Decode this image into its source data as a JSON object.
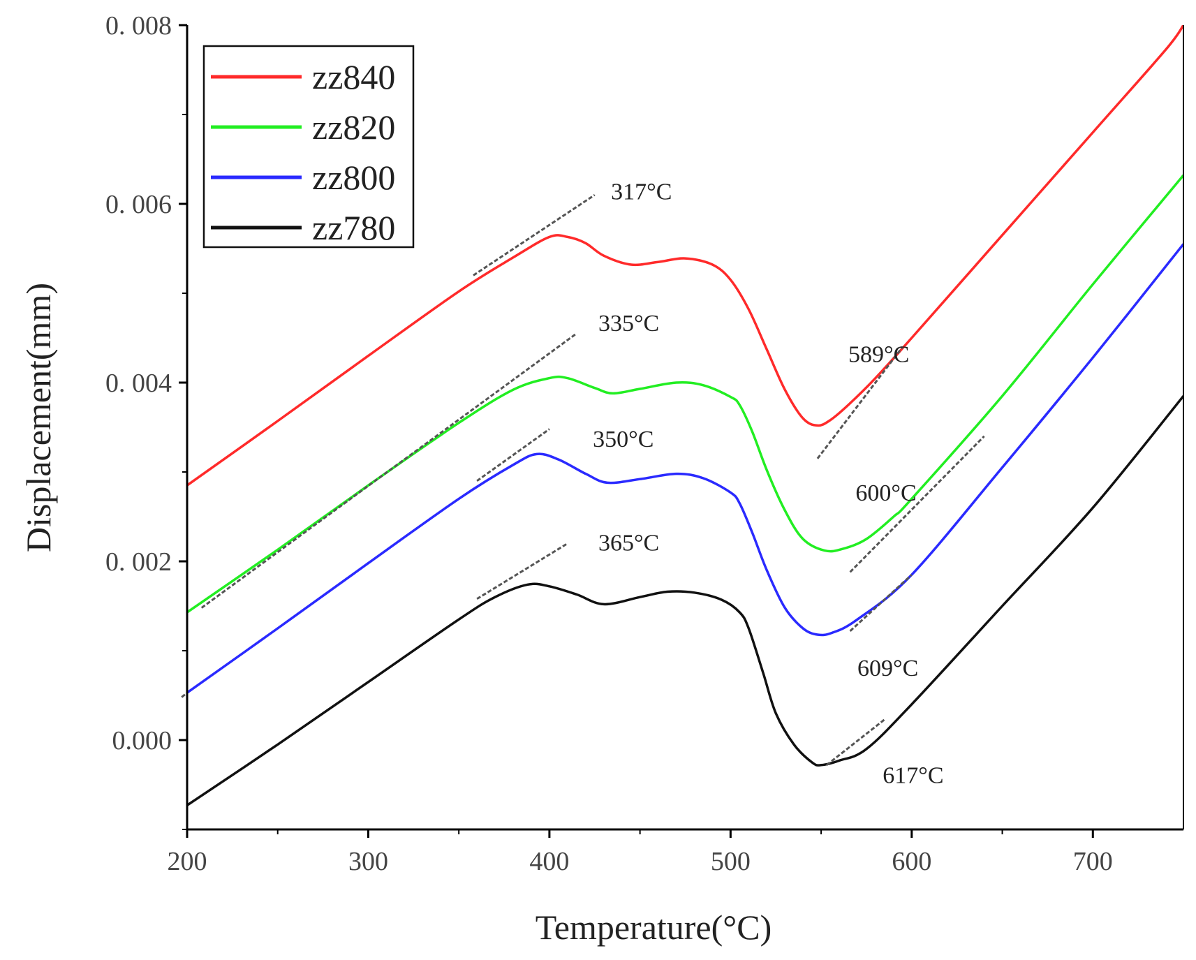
{
  "chart_data": {
    "type": "line",
    "title": "",
    "xlabel": "Temperature(°C)",
    "ylabel": "Displacement(mm)",
    "xlim": [
      200,
      750
    ],
    "ylim": [
      -0.001,
      0.008
    ],
    "xticks": [
      200,
      300,
      400,
      500,
      600,
      700
    ],
    "xtick_labels": [
      "200",
      "300",
      "400",
      "500",
      "600",
      "700"
    ],
    "yticks": [
      0.0,
      0.002,
      0.004,
      0.006,
      0.008
    ],
    "ytick_labels": [
      "0.000",
      "0. 002",
      "0. 004",
      "0. 006",
      "0. 008"
    ],
    "grid": false,
    "legend_position": "top-left",
    "series": [
      {
        "name": "zz840",
        "color": "#ff2a2a",
        "points": [
          [
            200,
            0.00285
          ],
          [
            250,
            0.00357
          ],
          [
            300,
            0.0043
          ],
          [
            350,
            0.00502
          ],
          [
            380,
            0.0054
          ],
          [
            400,
            0.00563
          ],
          [
            410,
            0.00563
          ],
          [
            420,
            0.00556
          ],
          [
            430,
            0.00542
          ],
          [
            445,
            0.00532
          ],
          [
            460,
            0.00535
          ],
          [
            475,
            0.00539
          ],
          [
            490,
            0.00532
          ],
          [
            500,
            0.00515
          ],
          [
            510,
            0.00482
          ],
          [
            520,
            0.00437
          ],
          [
            530,
            0.00392
          ],
          [
            540,
            0.0036
          ],
          [
            548,
            0.00352
          ],
          [
            555,
            0.00358
          ],
          [
            565,
            0.00375
          ],
          [
            580,
            0.00405
          ],
          [
            600,
            0.0045
          ],
          [
            650,
            0.00565
          ],
          [
            700,
            0.0068
          ],
          [
            740,
            0.00772
          ],
          [
            750,
            0.008
          ]
        ]
      },
      {
        "name": "zz820",
        "color": "#22ee22",
        "points": [
          [
            200,
            0.00143
          ],
          [
            250,
            0.00213
          ],
          [
            300,
            0.00285
          ],
          [
            350,
            0.00355
          ],
          [
            380,
            0.00392
          ],
          [
            400,
            0.00405
          ],
          [
            410,
            0.00405
          ],
          [
            425,
            0.00394
          ],
          [
            435,
            0.00388
          ],
          [
            450,
            0.00393
          ],
          [
            470,
            0.004
          ],
          [
            485,
            0.00397
          ],
          [
            500,
            0.00384
          ],
          [
            505,
            0.00375
          ],
          [
            512,
            0.00345
          ],
          [
            520,
            0.00302
          ],
          [
            530,
            0.00257
          ],
          [
            540,
            0.00225
          ],
          [
            552,
            0.00212
          ],
          [
            562,
            0.00214
          ],
          [
            575,
            0.00225
          ],
          [
            590,
            0.0025
          ],
          [
            600,
            0.0027
          ],
          [
            650,
            0.00385
          ],
          [
            700,
            0.0051
          ],
          [
            750,
            0.00632
          ]
        ]
      },
      {
        "name": "zz800",
        "color": "#2a2aff",
        "points": [
          [
            200,
            0.00053
          ],
          [
            250,
            0.00125
          ],
          [
            300,
            0.00198
          ],
          [
            350,
            0.0027
          ],
          [
            380,
            0.00308
          ],
          [
            393,
            0.0032
          ],
          [
            405,
            0.00314
          ],
          [
            420,
            0.00298
          ],
          [
            432,
            0.00288
          ],
          [
            450,
            0.00292
          ],
          [
            470,
            0.00298
          ],
          [
            485,
            0.00293
          ],
          [
            500,
            0.00277
          ],
          [
            505,
            0.00265
          ],
          [
            512,
            0.00232
          ],
          [
            520,
            0.0019
          ],
          [
            530,
            0.00148
          ],
          [
            540,
            0.00125
          ],
          [
            548,
            0.00118
          ],
          [
            556,
            0.0012
          ],
          [
            570,
            0.00135
          ],
          [
            600,
            0.00185
          ],
          [
            650,
            0.00305
          ],
          [
            700,
            0.00428
          ],
          [
            750,
            0.00555
          ]
        ]
      },
      {
        "name": "zz780",
        "color": "#111111",
        "points": [
          [
            200,
            -0.00073
          ],
          [
            250,
            -5e-05
          ],
          [
            300,
            0.00065
          ],
          [
            350,
            0.00135
          ],
          [
            370,
            0.0016
          ],
          [
            388,
            0.00174
          ],
          [
            400,
            0.00172
          ],
          [
            415,
            0.00163
          ],
          [
            430,
            0.00152
          ],
          [
            450,
            0.0016
          ],
          [
            465,
            0.00166
          ],
          [
            480,
            0.00165
          ],
          [
            495,
            0.00157
          ],
          [
            505,
            0.00143
          ],
          [
            510,
            0.00125
          ],
          [
            518,
            0.00075
          ],
          [
            525,
            0.0003
          ],
          [
            535,
            -5e-05
          ],
          [
            545,
            -0.00025
          ],
          [
            550,
            -0.00028
          ],
          [
            560,
            -0.00023
          ],
          [
            575,
            -0.0001
          ],
          [
            600,
            0.0004
          ],
          [
            650,
            0.0015
          ],
          [
            700,
            0.0026
          ],
          [
            750,
            0.00385
          ]
        ]
      }
    ],
    "tangent_lines": [
      {
        "from": [
          358,
          0.0052
        ],
        "to": [
          425,
          0.0061
        ]
      },
      {
        "from": [
          208,
          0.00148
        ],
        "to": [
          415,
          0.00455
        ]
      },
      {
        "from": [
          360,
          0.0029
        ],
        "to": [
          400,
          0.00348
        ]
      },
      {
        "from": [
          197,
          0.00048
        ],
        "to": [
          200,
          0.00053
        ]
      },
      {
        "from": [
          360,
          0.00158
        ],
        "to": [
          410,
          0.0022
        ]
      },
      {
        "from": [
          548,
          0.00315
        ],
        "to": [
          595,
          0.0044
        ]
      },
      {
        "from": [
          566,
          0.00188
        ],
        "to": [
          640,
          0.0034
        ]
      },
      {
        "from": [
          566,
          0.00122
        ],
        "to": [
          600,
          0.00185
        ]
      },
      {
        "from": [
          553,
          -0.00028
        ],
        "to": [
          585,
          0.00023
        ]
      }
    ],
    "annotations": [
      {
        "text": "317°C",
        "x": 434,
        "y": 0.00605
      },
      {
        "text": "335°C",
        "x": 427,
        "y": 0.00458
      },
      {
        "text": "350°C",
        "x": 424,
        "y": 0.00328
      },
      {
        "text": "365°C",
        "x": 427,
        "y": 0.00212
      },
      {
        "text": "589°C",
        "x": 565,
        "y": 0.00423
      },
      {
        "text": "600°C",
        "x": 569,
        "y": 0.00268
      },
      {
        "text": "609°C",
        "x": 570,
        "y": 0.00072
      },
      {
        "text": "617°C",
        "x": 584,
        "y": -0.00048
      }
    ]
  }
}
